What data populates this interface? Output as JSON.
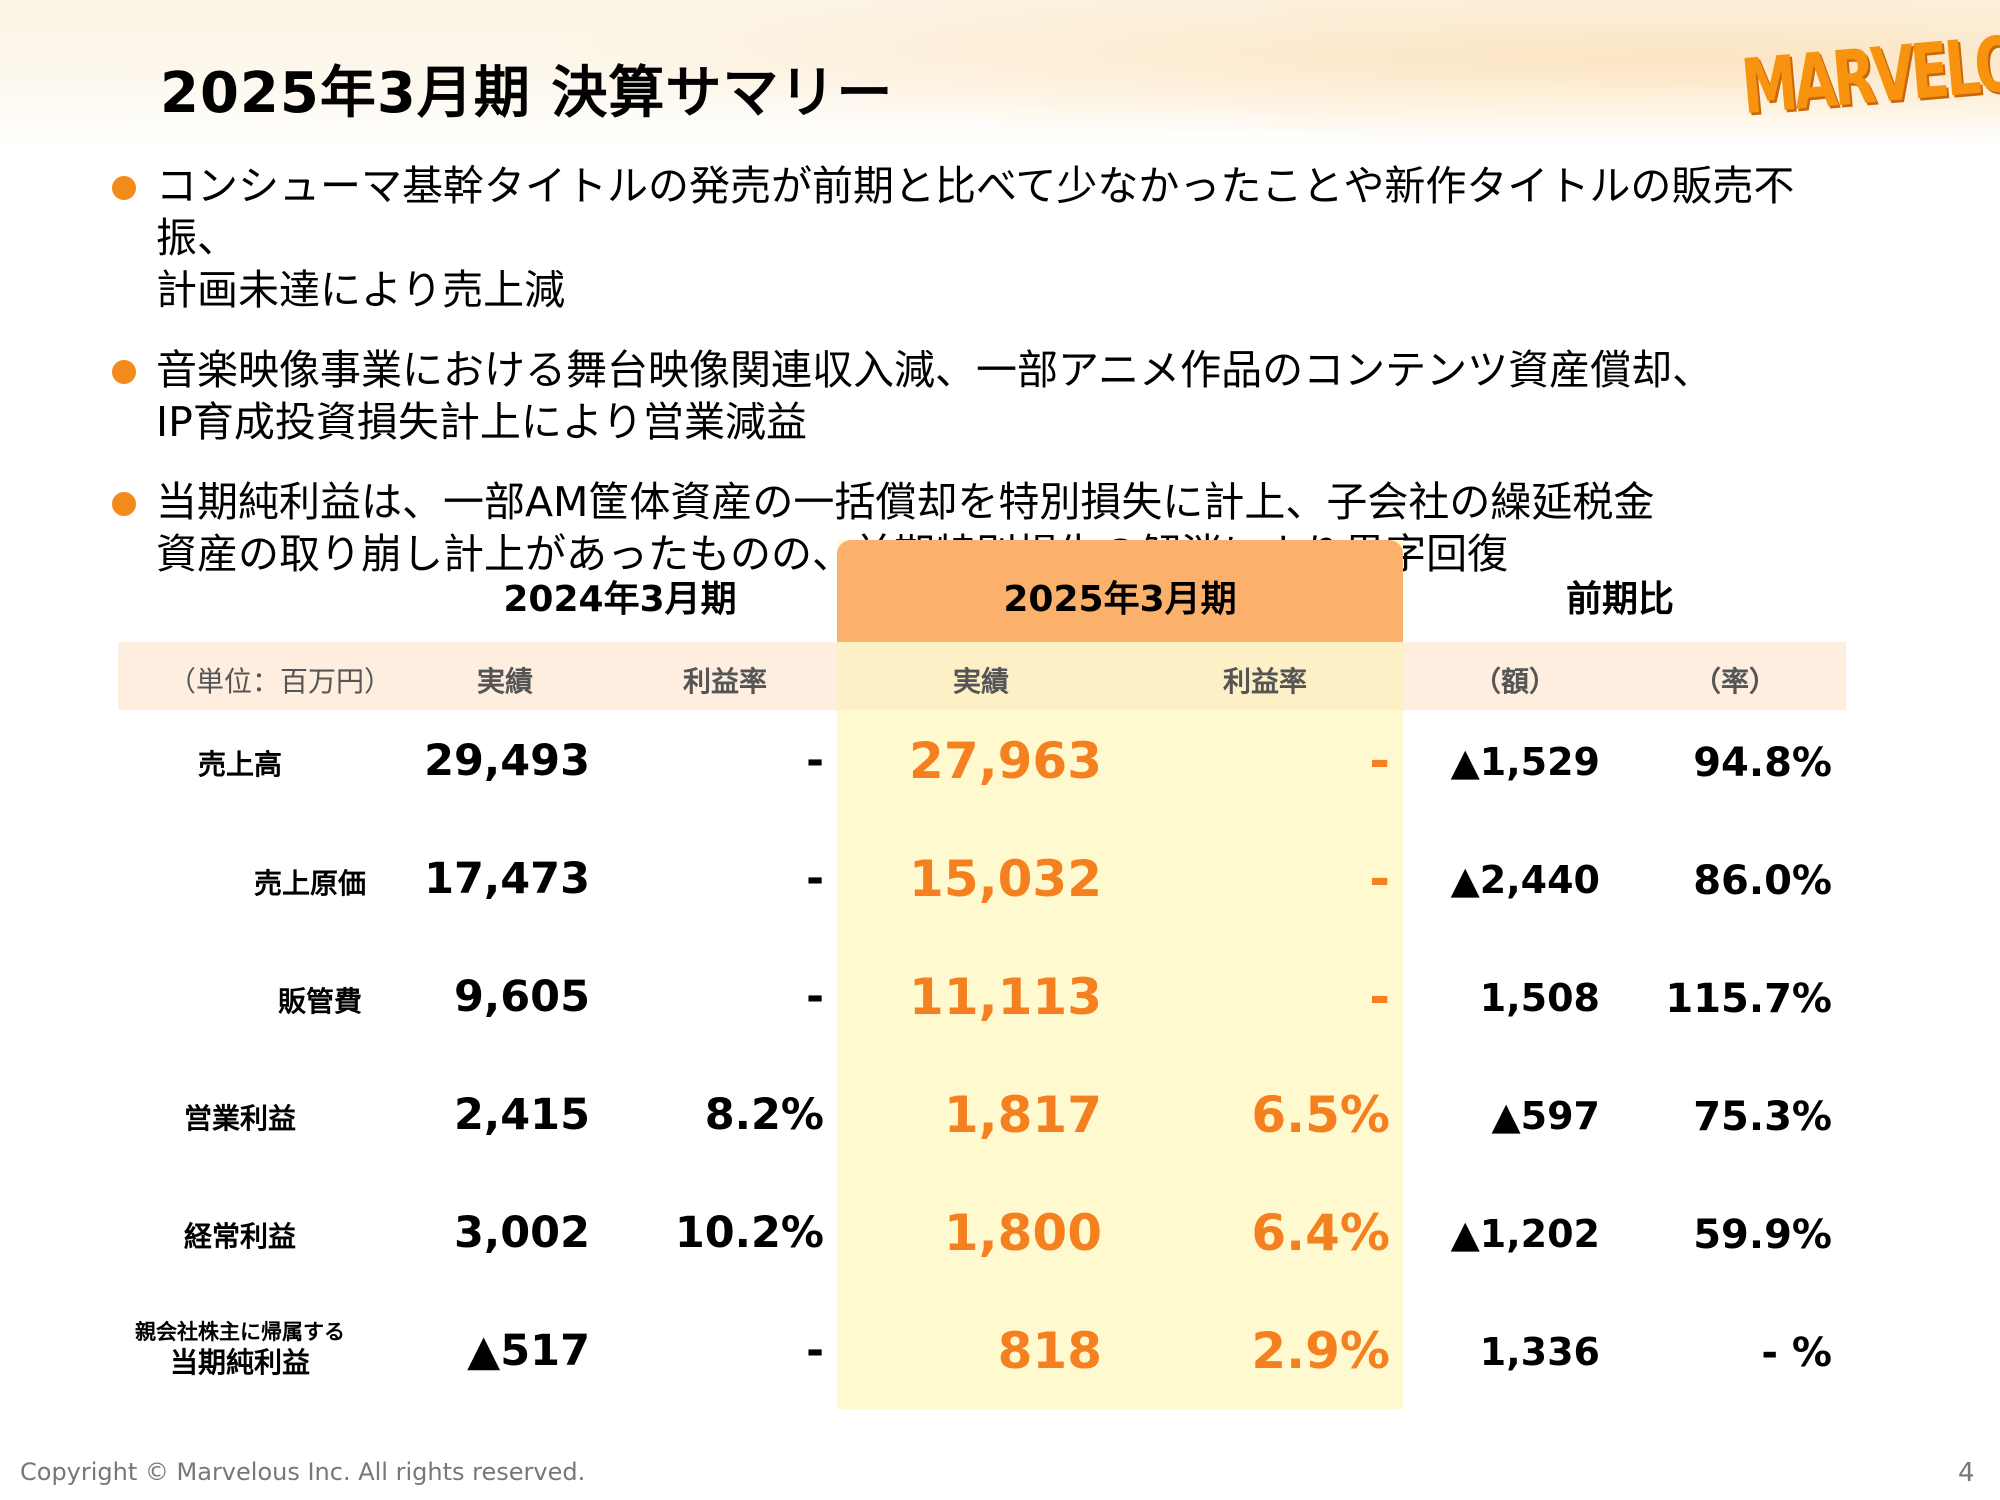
{
  "header": {
    "title": "2025年3月期 決算サマリー",
    "logo_text": "MARVELOUS!"
  },
  "bullets": [
    "コンシューマ基幹タイトルの発売が前期と比べて少なかったことや新作タイトルの販売不振、\n計画未達により売上減",
    "音楽映像事業における舞台映像関連収入減、一部アニメ作品のコンテンツ資産償却、\nIP育成投資損失計上により営業減益",
    "当期純利益は、一部AM筐体資産の一括償却を特別損失に計上、子会社の繰延税金\n資産の取り崩し計上があったものの、前期特別損失の解消により黒字回復"
  ],
  "table": {
    "periods": {
      "prev": "2024年3月期",
      "curr": "2025年3月期",
      "comparison": "前期比"
    },
    "subheaders": {
      "unit": "（単位：百万円）",
      "prev_actual": "実績",
      "prev_margin": "利益率",
      "curr_actual": "実績",
      "curr_margin": "利益率",
      "diff_amount": "（額）",
      "diff_rate": "（率）"
    },
    "rows": [
      {
        "label": "売上高",
        "prev_actual": "29,493",
        "prev_margin": "-",
        "curr_actual": "27,963",
        "curr_margin": "-",
        "diff_amount": "▲1,529",
        "diff_rate": "94.8%"
      },
      {
        "label": "売上原価",
        "prev_actual": "17,473",
        "prev_margin": "-",
        "curr_actual": "15,032",
        "curr_margin": "-",
        "diff_amount": "▲2,440",
        "diff_rate": "86.0%"
      },
      {
        "label": "販管費",
        "prev_actual": "9,605",
        "prev_margin": "-",
        "curr_actual": "11,113",
        "curr_margin": "-",
        "diff_amount": "1,508",
        "diff_rate": "115.7%"
      },
      {
        "label": "営業利益",
        "prev_actual": "2,415",
        "prev_margin": "8.2%",
        "curr_actual": "1,817",
        "curr_margin": "6.5%",
        "diff_amount": "▲597",
        "diff_rate": "75.3%"
      },
      {
        "label": "経常利益",
        "prev_actual": "3,002",
        "prev_margin": "10.2%",
        "curr_actual": "1,800",
        "curr_margin": "6.4%",
        "diff_amount": "▲1,202",
        "diff_rate": "59.9%"
      },
      {
        "label_top": "親会社株主に帰属する",
        "label_bottom": "当期純利益",
        "prev_actual": "▲517",
        "prev_margin": "-",
        "curr_actual": "818",
        "curr_margin": "2.9%",
        "diff_amount": "1,336",
        "diff_rate": "- %"
      }
    ]
  },
  "footer": {
    "copyright": "Copyright © Marvelous Inc. All rights reserved.",
    "page_number": "4"
  },
  "colors": {
    "accent_orange": "#f5801f",
    "bullet_orange": "#f28a1c",
    "highlight_header": "#fbb06c",
    "highlight_column": "#fff9cf",
    "subheader_band": "#fdeee0"
  }
}
